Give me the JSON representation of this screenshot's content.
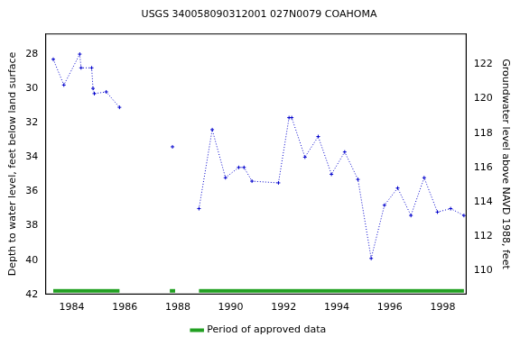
{
  "chart_data": {
    "type": "line",
    "title": "USGS 340058090312001 027N0079 COAHOMA",
    "y_label": "Depth to water level, feet below land surface",
    "y2_label": "Groundwater level above NAVD 1988, feet",
    "x": [
      1983.3,
      1983.7,
      1984.3,
      1984.35,
      1984.75,
      1984.8,
      1984.85,
      1985.3,
      1985.8,
      1986.8,
      1987.8,
      1988.3,
      1988.8,
      1989.3,
      1989.8,
      1990.3,
      1990.5,
      1990.8,
      1991.8,
      1992.2,
      1992.3,
      1992.8,
      1993.3,
      1993.8,
      1994.3,
      1994.8,
      1995.3,
      1995.8,
      1996.3,
      1996.8,
      1997.3,
      1997.8,
      1998.3,
      1998.8
    ],
    "series": [
      {
        "color": "#0000cc",
        "marker": "plus",
        "line_style": "dotted",
        "values": [
          28.3,
          29.8,
          28.0,
          28.8,
          28.8,
          30.0,
          30.3,
          30.2,
          31.1,
          null,
          33.4,
          null,
          37.0,
          32.4,
          35.2,
          34.6,
          34.6,
          35.4,
          35.5,
          31.7,
          31.7,
          34.0,
          32.8,
          35.0,
          33.7,
          35.3,
          39.9,
          36.8,
          35.8,
          37.4,
          35.2,
          37.2,
          37.0,
          37.4
        ]
      }
    ],
    "approved_periods": {
      "name": "Period of approved data",
      "color": "#22a022",
      "periods": [
        [
          1983.3,
          1985.8
        ],
        [
          1987.7,
          1987.9
        ],
        [
          1988.8,
          1998.8
        ]
      ]
    },
    "xlim": [
      1983.0,
      1998.9
    ],
    "xticks": [
      1984,
      1986,
      1988,
      1990,
      1992,
      1994,
      1996,
      1998
    ],
    "ylim": [
      42,
      26.8
    ],
    "yticks": [
      28,
      30,
      32,
      34,
      36,
      38,
      40,
      42
    ],
    "y2lim": [
      108.6,
      123.8
    ],
    "y2ticks": [
      110,
      112,
      114,
      116,
      118,
      120,
      122
    ],
    "grid": false,
    "legend": "bottom"
  }
}
